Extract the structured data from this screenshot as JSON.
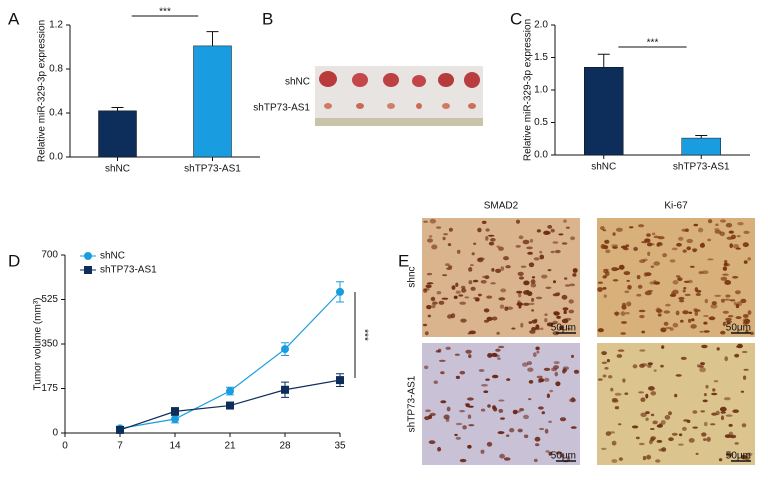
{
  "chart_data": [
    {
      "type": "bar",
      "panel_label": "A",
      "ylabel": "Relative miR-329-3p expression",
      "categories": [
        "shNC",
        "shTP73-AS1"
      ],
      "values": [
        0.42,
        1.01
      ],
      "errors": [
        0.03,
        0.13
      ],
      "colors": [
        "#0d2d5a",
        "#1a9de0"
      ],
      "ylim": [
        0,
        1.2
      ],
      "yticks": [
        {
          "value": 0,
          "label": "0.0"
        },
        0.4,
        0.8,
        1.2
      ],
      "annotation": "***"
    },
    {
      "type": "bar",
      "panel_label": "C",
      "ylabel": "Relative miR-329-3p expression",
      "categories": [
        "shNC",
        "shTP73-AS1"
      ],
      "values": [
        1.35,
        0.26
      ],
      "errors": [
        0.2,
        0.04
      ],
      "colors": [
        "#0d2d5a",
        "#1a9de0"
      ],
      "ylim": [
        0,
        2.0
      ],
      "yticks": [
        {
          "value": 0,
          "label": "0.0"
        },
        0.5,
        {
          "value": 1,
          "label": "1.0"
        },
        1.5,
        {
          "value": 2,
          "label": "2.0"
        }
      ],
      "annotation": "***"
    },
    {
      "type": "line",
      "panel_label": "D",
      "ylabel": "Tumor volume (mm³)",
      "x": [
        7,
        14,
        21,
        28,
        35
      ],
      "xlim": [
        0,
        35
      ],
      "xticks": [
        0,
        7,
        14,
        21,
        28,
        35
      ],
      "ylim": [
        0,
        700
      ],
      "yticks": [
        0,
        175,
        350,
        525,
        700
      ],
      "legend": "upper left",
      "series": [
        {
          "name": "shNC",
          "color": "#1a9de0",
          "marker": "circle",
          "values": [
            18,
            55,
            165,
            330,
            555
          ],
          "errors": [
            8,
            15,
            15,
            25,
            40
          ]
        },
        {
          "name": "shTP73-AS1",
          "color": "#0d2d5a",
          "marker": "square",
          "values": [
            12,
            85,
            108,
            170,
            208
          ],
          "errors": [
            5,
            15,
            8,
            30,
            25
          ]
        }
      ],
      "annotation": "***"
    }
  ],
  "panel_b": {
    "label": "B",
    "rows": [
      "shNC",
      "shTP73-AS1"
    ]
  },
  "panel_e": {
    "label": "E",
    "columns": [
      "SMAD2",
      "Ki-67"
    ],
    "rows": [
      "shnc",
      "shTP73-AS1"
    ],
    "scale_bar": "50μm"
  }
}
